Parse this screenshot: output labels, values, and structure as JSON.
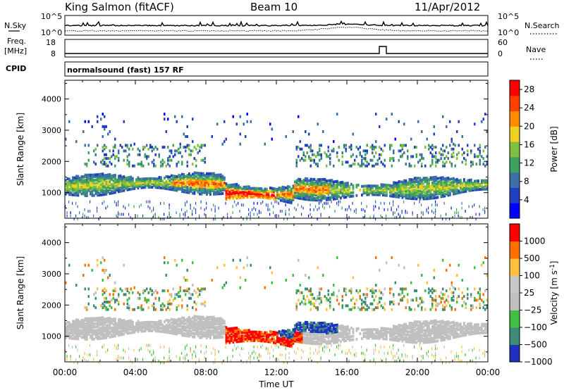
{
  "header": {
    "station": "King Salmon (fitACF)",
    "beam": "Beam 10",
    "date": "11/Apr/2012"
  },
  "noise_panel": {
    "left_label": "N.Sky",
    "right_label": "N.Search",
    "left_ticks": [
      "10^5",
      "10^0"
    ],
    "right_ticks": [
      "10^5",
      "10^0"
    ]
  },
  "freq_panel": {
    "left_label_1": "Freq.",
    "left_label_2": "[MHz]",
    "right_label": "Nave",
    "left_ticks": [
      "18",
      "8"
    ],
    "right_ticks": [
      "60",
      "0"
    ]
  },
  "cpid_panel": {
    "label": "CPID",
    "text": "normalsound (fast) 157 RF"
  },
  "chart_data": [
    {
      "type": "heatmap",
      "parameter": "Power",
      "ylabel": "Slant Range [km]",
      "xlabel": "",
      "ylim": [
        180,
        4600
      ],
      "yticks": [
        1000,
        2000,
        3000,
        4000
      ],
      "xlim_hours": [
        0,
        24
      ],
      "colorbar_label": "Power [dB]",
      "colorbar_ticks": [
        "28",
        "24",
        "20",
        "16",
        "12",
        "8",
        "4"
      ],
      "colorbar_range": [
        0,
        30
      ],
      "colors": [
        "#0000ff",
        "#2040c0",
        "#3c6ea8",
        "#40a060",
        "#80c040",
        "#f0d020",
        "#ff8c00",
        "#ff4000",
        "#ff0000"
      ]
    },
    {
      "type": "heatmap",
      "parameter": "Velocity",
      "ylabel": "Slant Range [km]",
      "xlabel": "Time UT",
      "ylim": [
        180,
        4600
      ],
      "yticks": [
        1000,
        2000,
        3000,
        4000
      ],
      "xlim_hours": [
        0,
        24
      ],
      "xticks": [
        "00:00",
        "04:00",
        "08:00",
        "12:00",
        "16:00",
        "20:00",
        "00:00"
      ],
      "colorbar_label": "Velocity [m s",
      "colorbar_label_sup": "-1",
      "colorbar_label_end": "]",
      "colorbar_ticks": [
        "1000",
        "500",
        "100",
        "25",
        "−25",
        "−100",
        "−500",
        "−1000"
      ],
      "colors": [
        "#2030c0",
        "#3c8c78",
        "#40c040",
        "#c0c0c0",
        "#c8c8c8",
        "#ffc040",
        "#ff7000",
        "#ff0000"
      ]
    }
  ]
}
